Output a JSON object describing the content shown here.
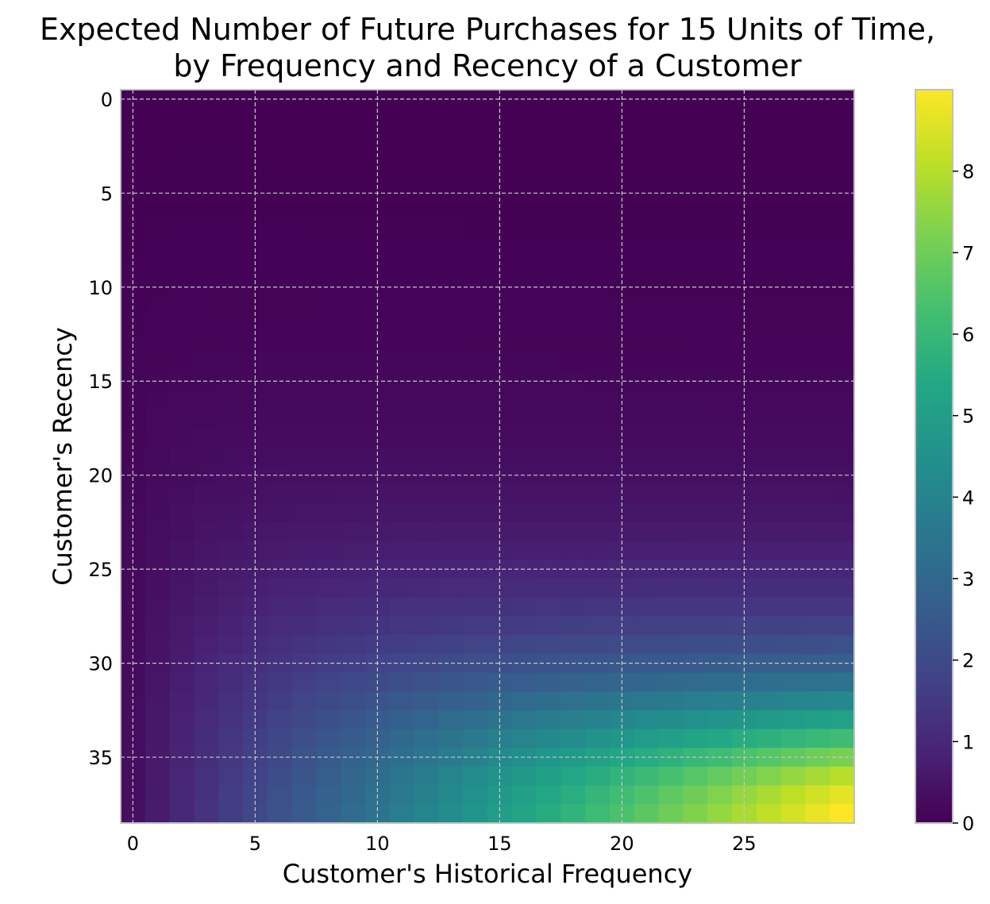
{
  "chart_data": {
    "type": "heatmap",
    "title_line1": "Expected Number of Future Purchases for 15 Units of Time,",
    "title_line2": "by Frequency and Recency of a Customer",
    "xlabel": "Customer's Historical Frequency",
    "ylabel": "Customer's Recency",
    "x_range": [
      0,
      29
    ],
    "y_range": [
      0,
      38
    ],
    "x_ticks": [
      "0",
      "5",
      "10",
      "15",
      "20",
      "25"
    ],
    "y_ticks": [
      "0",
      "5",
      "10",
      "15",
      "20",
      "25",
      "30",
      "35"
    ],
    "colormap": "viridis",
    "colorbar_range": [
      0,
      9
    ],
    "colorbar_ticks": [
      "0",
      "1",
      "2",
      "3",
      "4",
      "5",
      "6",
      "7",
      "8"
    ],
    "grid": true,
    "value_model": {
      "description": "expected purchases for frequency f and recency r (T = 38)",
      "max_value_at": {
        "frequency": 29,
        "recency": 38,
        "value": 9.0
      }
    }
  }
}
